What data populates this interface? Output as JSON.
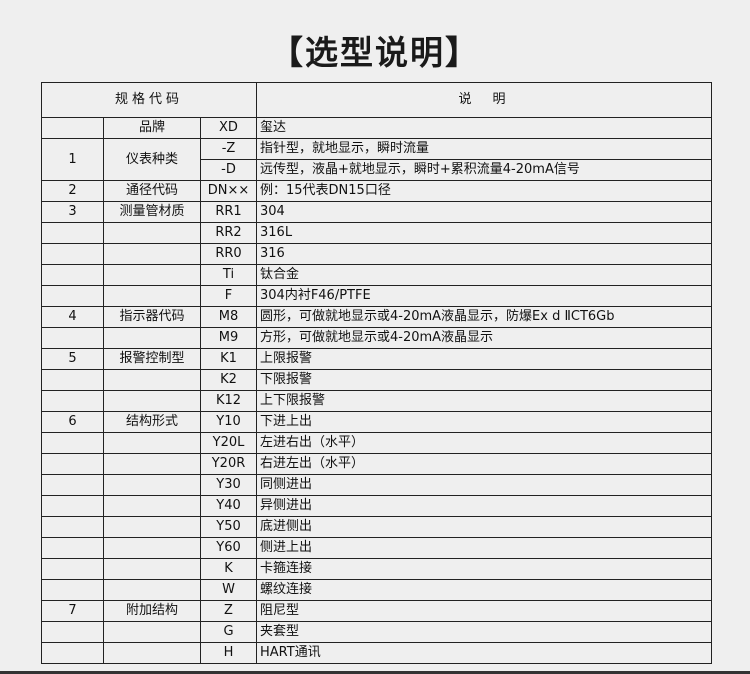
{
  "title": "【选型说明】",
  "header": {
    "spec_code": "规格代码",
    "description": "说　明"
  },
  "rows": [
    {
      "no": "",
      "name": "品牌",
      "code": "XD",
      "desc": "玺达"
    },
    {
      "no": "1",
      "name": "仪表种类",
      "code": "-Z",
      "desc": "指针型，就地显示，瞬时流量"
    },
    {
      "no": "",
      "name": "",
      "code": "-D",
      "desc": "远传型，液晶+就地显示，瞬时+累积流量4-20mA信号"
    },
    {
      "no": "2",
      "name": "通径代码",
      "code": "DN××",
      "desc": "例：15代表DN15口径"
    },
    {
      "no": "3",
      "name": "测量管材质",
      "code": "RR1",
      "desc": "304"
    },
    {
      "no": "",
      "name": "",
      "code": "RR2",
      "desc": "316L"
    },
    {
      "no": "",
      "name": "",
      "code": "RR0",
      "desc": "316"
    },
    {
      "no": "",
      "name": "",
      "code": "Ti",
      "desc": "钛合金"
    },
    {
      "no": "",
      "name": "",
      "code": "F",
      "desc": "304内衬F46/PTFE"
    },
    {
      "no": "4",
      "name": "指示器代码",
      "code": "M8",
      "desc": "圆形，可做就地显示或4-20mA液晶显示，防爆Ex d ⅡCT6Gb"
    },
    {
      "no": "",
      "name": "",
      "code": "M9",
      "desc": "方形，可做就地显示或4-20mA液晶显示"
    },
    {
      "no": "5",
      "name": "报警控制型",
      "code": "K1",
      "desc": "上限报警"
    },
    {
      "no": "",
      "name": "",
      "code": "K2",
      "desc": "下限报警"
    },
    {
      "no": "",
      "name": "",
      "code": "K12",
      "desc": "上下限报警"
    },
    {
      "no": "6",
      "name": "结构形式",
      "code": "Y10",
      "desc": "下进上出"
    },
    {
      "no": "",
      "name": "",
      "code": "Y20L",
      "desc": "左进右出（水平）"
    },
    {
      "no": "",
      "name": "",
      "code": "Y20R",
      "desc": "右进左出（水平）"
    },
    {
      "no": "",
      "name": "",
      "code": "Y30",
      "desc": "同侧进出"
    },
    {
      "no": "",
      "name": "",
      "code": "Y40",
      "desc": "异侧进出"
    },
    {
      "no": "",
      "name": "",
      "code": "Y50",
      "desc": "底进侧出"
    },
    {
      "no": "",
      "name": "",
      "code": "Y60",
      "desc": "侧进上出"
    },
    {
      "no": "",
      "name": "",
      "code": "K",
      "desc": "卡箍连接"
    },
    {
      "no": "",
      "name": "",
      "code": "W",
      "desc": "螺纹连接"
    },
    {
      "no": "7",
      "name": "附加结构",
      "code": "Z",
      "desc": "阻尼型"
    },
    {
      "no": "",
      "name": "",
      "code": "G",
      "desc": "夹套型"
    },
    {
      "no": "",
      "name": "",
      "code": "H",
      "desc": "HART通讯"
    }
  ]
}
